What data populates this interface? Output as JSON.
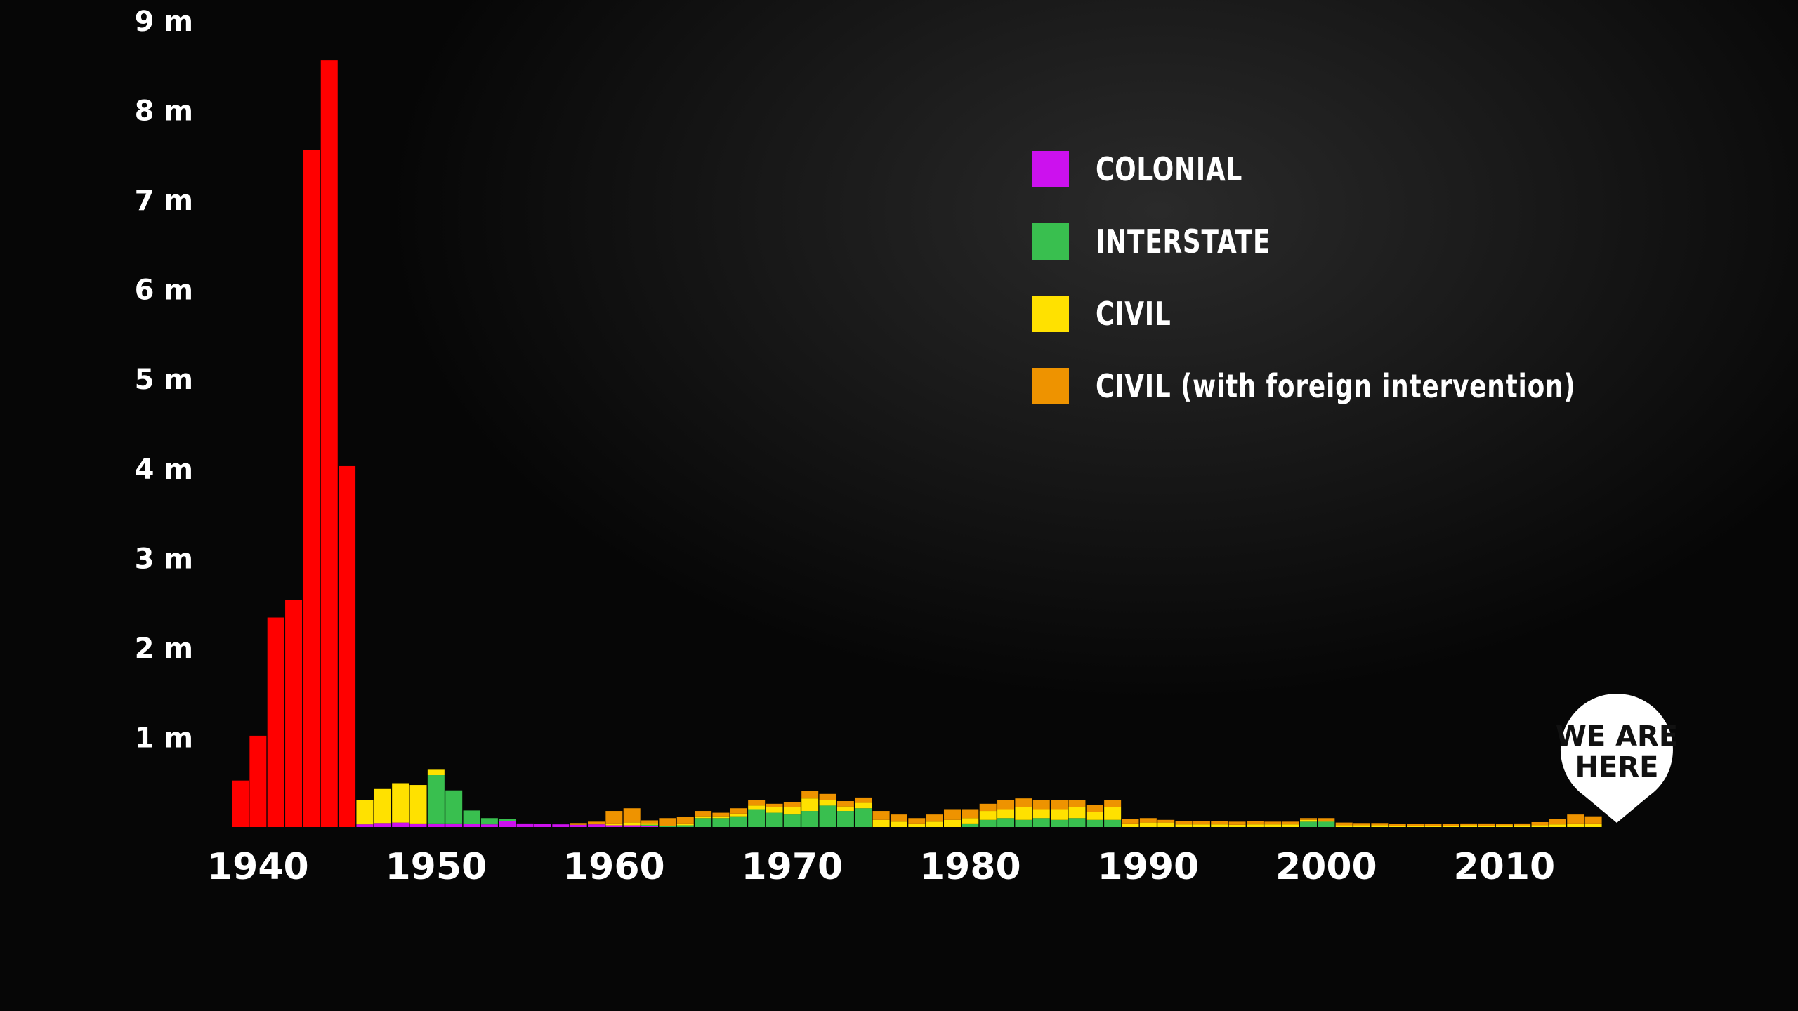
{
  "colors": {
    "ww2": "#ff0000",
    "colonial": "#cc11ee",
    "interstate": "#39bf4f",
    "civil": "#ffe100",
    "civil_foreign": "#ee9300",
    "text": "#ffffff"
  },
  "legend": [
    {
      "label": "COLONIAL",
      "color": "#cc11ee"
    },
    {
      "label": "INTERSTATE",
      "color": "#39bf4f"
    },
    {
      "label": "CIVIL",
      "color": "#ffe100"
    },
    {
      "label": "CIVIL (with foreign intervention)",
      "color": "#ee9300"
    }
  ],
  "marker": {
    "line1": "WE ARE",
    "line2": "HERE",
    "year": 2016
  },
  "chart_data": {
    "type": "bar",
    "stacked": true,
    "ylim": [
      0,
      9000000
    ],
    "y_ticks": [
      {
        "value": 1000000,
        "label": "1 m"
      },
      {
        "value": 2000000,
        "label": "2 m"
      },
      {
        "value": 3000000,
        "label": "3 m"
      },
      {
        "value": 4000000,
        "label": "4 m"
      },
      {
        "value": 5000000,
        "label": "5 m"
      },
      {
        "value": 6000000,
        "label": "6 m"
      },
      {
        "value": 7000000,
        "label": "7 m"
      },
      {
        "value": 8000000,
        "label": "8 m"
      },
      {
        "value": 9000000,
        "label": "9 m"
      }
    ],
    "x_ticks": [
      {
        "value": 1940,
        "label": "1940"
      },
      {
        "value": 1950,
        "label": "1950"
      },
      {
        "value": 1960,
        "label": "1960"
      },
      {
        "value": 1970,
        "label": "1970"
      },
      {
        "value": 1980,
        "label": "1980"
      },
      {
        "value": 1990,
        "label": "1990"
      },
      {
        "value": 2000,
        "label": "2000"
      },
      {
        "value": 2010,
        "label": "2010"
      }
    ],
    "series_order": [
      "ww2",
      "colonial",
      "interstate",
      "civil",
      "civil_foreign"
    ],
    "series": [
      {
        "key": "ww2",
        "years": [
          1939,
          1940,
          1941,
          1942,
          1943,
          1944,
          1945
        ],
        "values": [
          520000,
          1020000,
          2340000,
          2540000,
          7560000,
          8560000,
          4030000
        ]
      },
      {
        "key": "colonial",
        "years": [
          1946,
          1947,
          1948,
          1949,
          1950,
          1951,
          1952,
          1953,
          1954,
          1955,
          1956,
          1957,
          1958,
          1959,
          1960,
          1961,
          1962
        ],
        "values": [
          30000,
          45000,
          50000,
          40000,
          40000,
          40000,
          35000,
          30000,
          70000,
          40000,
          35000,
          30000,
          25000,
          30000,
          20000,
          20000,
          15000
        ]
      },
      {
        "key": "interstate",
        "years": [
          1946,
          1947,
          1948,
          1949,
          1950,
          1951,
          1952,
          1953,
          1954,
          1962,
          1963,
          1964,
          1965,
          1966,
          1967,
          1968,
          1969,
          1970,
          1971,
          1972,
          1973,
          1974,
          1980,
          1981,
          1982,
          1983,
          1984,
          1985,
          1986,
          1987,
          1988,
          1999,
          2000
        ],
        "values": [
          0,
          0,
          0,
          0,
          540000,
          370000,
          150000,
          70000,
          20000,
          10000,
          10000,
          20000,
          100000,
          100000,
          120000,
          200000,
          160000,
          140000,
          180000,
          240000,
          180000,
          210000,
          40000,
          80000,
          100000,
          80000,
          100000,
          80000,
          100000,
          80000,
          80000,
          60000,
          60000
        ]
      },
      {
        "key": "civil",
        "years": [
          1946,
          1947,
          1948,
          1949,
          1950,
          1960,
          1961,
          1962,
          1964,
          1965,
          1966,
          1967,
          1968,
          1969,
          1970,
          1971,
          1972,
          1973,
          1974,
          1975,
          1976,
          1977,
          1978,
          1979,
          1980,
          1981,
          1982,
          1983,
          1984,
          1985,
          1986,
          1987,
          1988,
          1989,
          1990,
          1991,
          1992,
          1993,
          1994,
          1995,
          1996,
          1997,
          1998,
          1999,
          2000,
          2001,
          2002,
          2003,
          2004,
          2005,
          2006,
          2007,
          2008,
          2009,
          2010,
          2011,
          2012,
          2013,
          2014,
          2015
        ],
        "values": [
          270000,
          380000,
          440000,
          430000,
          60000,
          20000,
          30000,
          20000,
          20000,
          20000,
          20000,
          30000,
          40000,
          60000,
          80000,
          140000,
          60000,
          50000,
          60000,
          80000,
          60000,
          40000,
          60000,
          80000,
          60000,
          100000,
          100000,
          140000,
          100000,
          120000,
          120000,
          90000,
          140000,
          40000,
          50000,
          50000,
          30000,
          30000,
          30000,
          25000,
          30000,
          30000,
          30000,
          20000,
          10000,
          20000,
          20000,
          20000,
          15000,
          15000,
          15000,
          15000,
          20000,
          15000,
          20000,
          20000,
          20000,
          30000,
          40000,
          40000
        ]
      },
      {
        "key": "civil_foreign",
        "years": [
          1958,
          1959,
          1960,
          1961,
          1962,
          1963,
          1964,
          1965,
          1966,
          1967,
          1968,
          1969,
          1970,
          1971,
          1972,
          1973,
          1974,
          1975,
          1976,
          1977,
          1978,
          1979,
          1980,
          1981,
          1982,
          1983,
          1984,
          1985,
          1986,
          1987,
          1988,
          1989,
          1990,
          1991,
          1992,
          1993,
          1994,
          1995,
          1996,
          1997,
          1998,
          1999,
          2000,
          2001,
          2002,
          2003,
          2004,
          2005,
          2006,
          2007,
          2008,
          2009,
          2010,
          2011,
          2012,
          2013,
          2014,
          2015
        ],
        "values": [
          20000,
          30000,
          140000,
          160000,
          30000,
          90000,
          70000,
          60000,
          40000,
          60000,
          60000,
          40000,
          60000,
          80000,
          70000,
          60000,
          60000,
          100000,
          80000,
          60000,
          80000,
          120000,
          100000,
          80000,
          100000,
          100000,
          100000,
          100000,
          80000,
          80000,
          80000,
          50000,
          50000,
          30000,
          40000,
          40000,
          40000,
          35000,
          35000,
          30000,
          30000,
          20000,
          30000,
          30000,
          25000,
          25000,
          20000,
          20000,
          20000,
          20000,
          20000,
          25000,
          15000,
          20000,
          35000,
          60000,
          100000,
          80000
        ]
      }
    ]
  }
}
